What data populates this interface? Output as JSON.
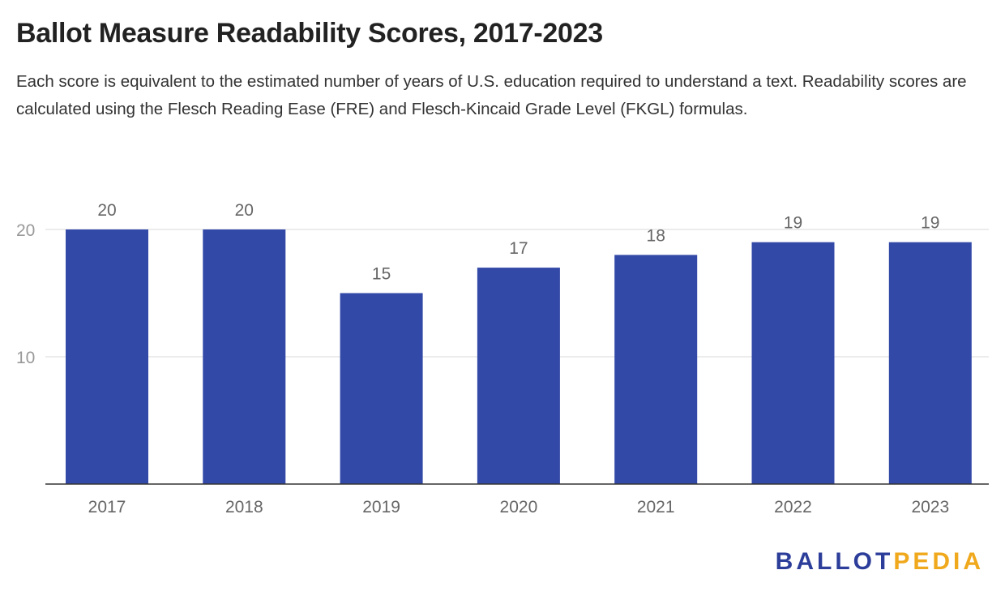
{
  "title": "Ballot Measure Readability Scores, 2017-2023",
  "subtitle": "Each score is equivalent to the estimated number of years of U.S. education required to understand a text. Readability scores are calculated using the Flesch Reading Ease (FRE) and Flesch-Kincaid Grade Level (FKGL) formulas.",
  "logo": {
    "part1": "BALLOT",
    "part2": "PEDIA"
  },
  "colors": {
    "bar": "#3349a8",
    "grid": "#e0e0e0",
    "axis": "#333333"
  },
  "chart_data": {
    "type": "bar",
    "categories": [
      "2017",
      "2018",
      "2019",
      "2020",
      "2021",
      "2022",
      "2023"
    ],
    "values": [
      20,
      20,
      15,
      17,
      18,
      19,
      19
    ],
    "title": "Ballot Measure Readability Scores, 2017-2023",
    "xlabel": "",
    "ylabel": "",
    "ylim": [
      0,
      20
    ],
    "yticks": [
      10,
      20
    ],
    "grid": true,
    "data_labels": true,
    "legend": "none"
  }
}
